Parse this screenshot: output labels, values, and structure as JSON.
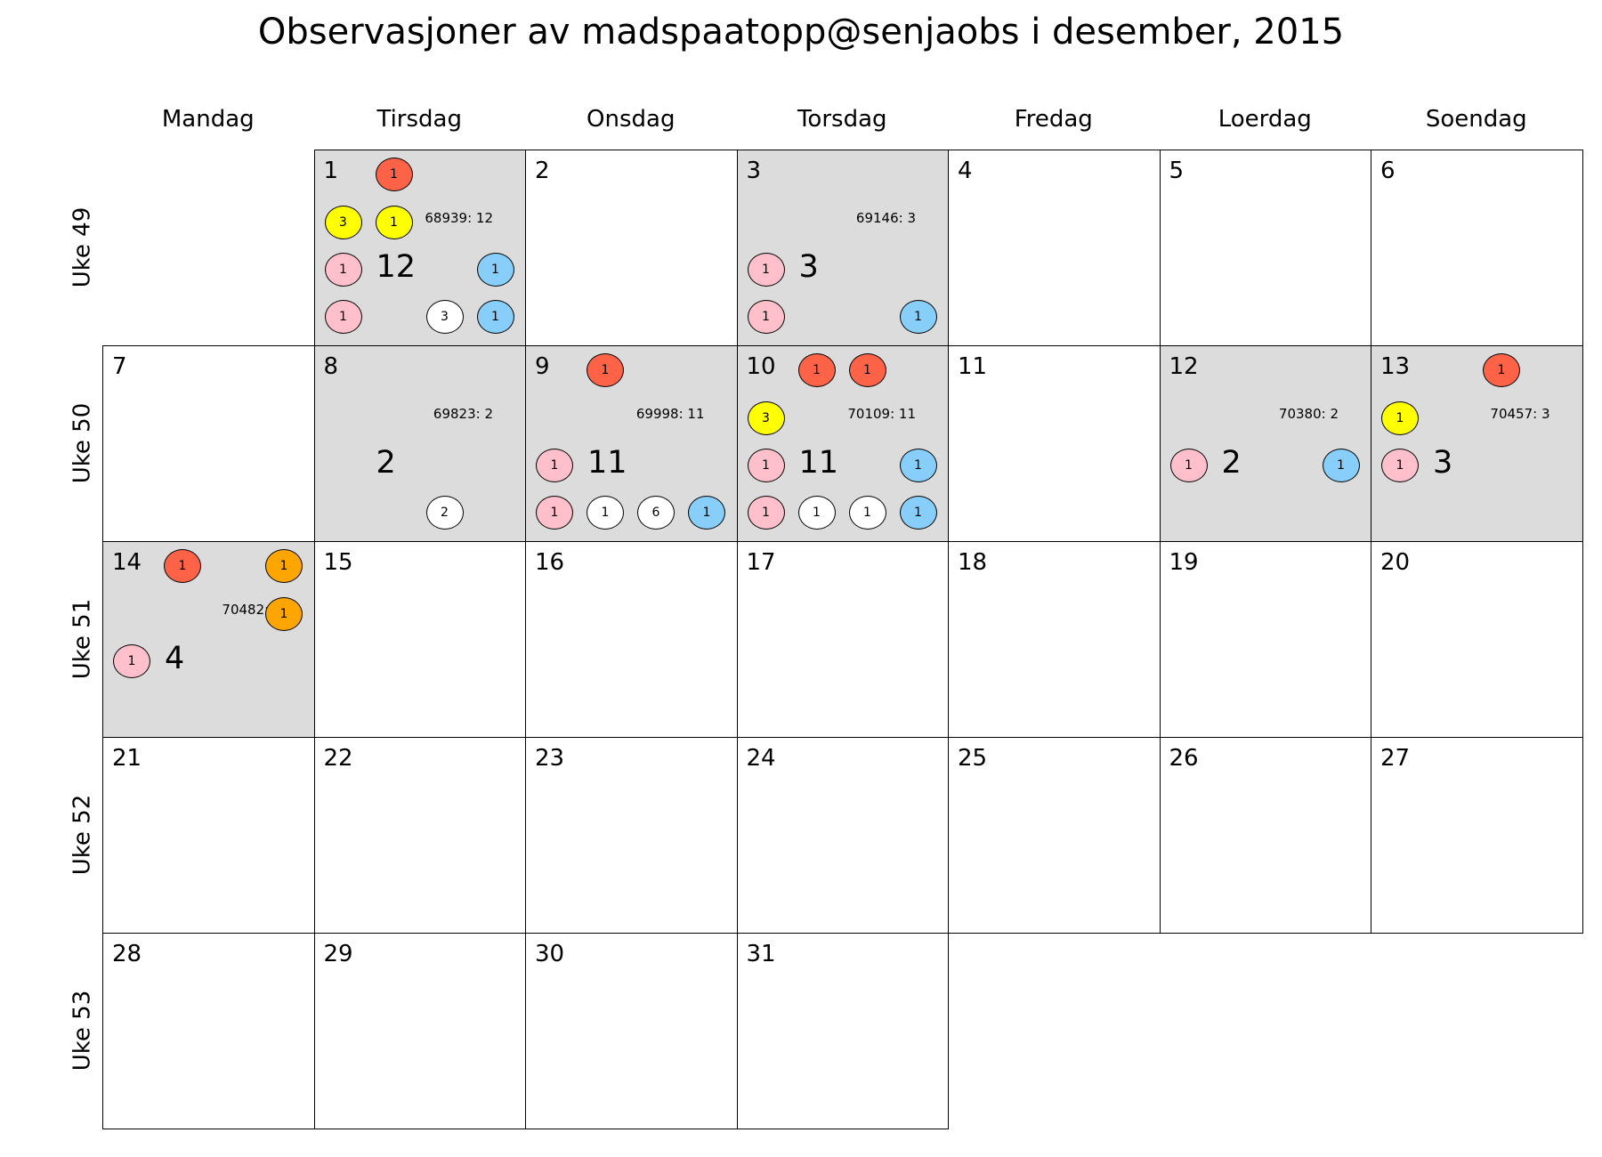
{
  "title": "Observasjoner av madspaatopp@senjaobs i desember, 2015",
  "colors": {
    "red": "#ff6347",
    "yellow": "#ffff00",
    "pink": "#ffc0cb",
    "blue": "#87cefa",
    "white": "#ffffff",
    "orange": "#ffa500",
    "shaded_bg": "#dcdcdc"
  },
  "day_names": [
    "Mandag",
    "Tirsdag",
    "Onsdag",
    "Torsdag",
    "Fredag",
    "Loerdag",
    "Soendag"
  ],
  "week_labels": [
    "Uke 49",
    "Uke 50",
    "Uke 51",
    "Uke 52",
    "Uke 53"
  ],
  "cells": [
    {
      "day": "1",
      "shaded": true,
      "total": "12",
      "obs_id": "68939: 12",
      "badges": [
        {
          "color": "red",
          "count": "1",
          "pos": "r1b"
        },
        {
          "color": "yellow",
          "count": "3",
          "pos": "r2a"
        },
        {
          "color": "yellow",
          "count": "1",
          "pos": "r2b"
        },
        {
          "color": "pink",
          "count": "1",
          "pos": "r3a"
        },
        {
          "color": "blue",
          "count": "1",
          "pos": "r3d"
        },
        {
          "color": "pink",
          "count": "1",
          "pos": "r4a"
        },
        {
          "color": "white",
          "count": "3",
          "pos": "r4c"
        },
        {
          "color": "blue",
          "count": "1",
          "pos": "r4d"
        }
      ]
    },
    {
      "day": "2",
      "shaded": false
    },
    {
      "day": "3",
      "shaded": true,
      "total": "3",
      "obs_id": "69146: 3",
      "badges": [
        {
          "color": "pink",
          "count": "1",
          "pos": "r3a"
        },
        {
          "color": "pink",
          "count": "1",
          "pos": "r4a"
        },
        {
          "color": "blue",
          "count": "1",
          "pos": "r4d"
        }
      ]
    },
    {
      "day": "4",
      "shaded": false
    },
    {
      "day": "5",
      "shaded": false
    },
    {
      "day": "6",
      "shaded": false
    },
    {
      "day": "7",
      "shaded": false
    },
    {
      "day": "8",
      "shaded": true,
      "total": "2",
      "obs_id": "69823: 2",
      "badges": [
        {
          "color": "white",
          "count": "2",
          "pos": "r4c"
        }
      ]
    },
    {
      "day": "9",
      "shaded": true,
      "total": "11",
      "obs_id": "69998: 11",
      "badges": [
        {
          "color": "red",
          "count": "1",
          "pos": "r1b"
        },
        {
          "color": "pink",
          "count": "1",
          "pos": "r3a"
        },
        {
          "color": "pink",
          "count": "1",
          "pos": "r4a"
        },
        {
          "color": "white",
          "count": "1",
          "pos": "r4b"
        },
        {
          "color": "white",
          "count": "6",
          "pos": "r4c"
        },
        {
          "color": "blue",
          "count": "1",
          "pos": "r4d"
        }
      ]
    },
    {
      "day": "10",
      "shaded": true,
      "total": "11",
      "obs_id": "70109: 11",
      "badges": [
        {
          "color": "red",
          "count": "1",
          "pos": "r1b"
        },
        {
          "color": "red",
          "count": "1",
          "pos": "r1c"
        },
        {
          "color": "yellow",
          "count": "3",
          "pos": "r2a"
        },
        {
          "color": "pink",
          "count": "1",
          "pos": "r3a"
        },
        {
          "color": "blue",
          "count": "1",
          "pos": "r3d"
        },
        {
          "color": "pink",
          "count": "1",
          "pos": "r4a"
        },
        {
          "color": "white",
          "count": "1",
          "pos": "r4b"
        },
        {
          "color": "white",
          "count": "1",
          "pos": "r4c"
        },
        {
          "color": "blue",
          "count": "1",
          "pos": "r4d"
        }
      ]
    },
    {
      "day": "11",
      "shaded": false
    },
    {
      "day": "12",
      "shaded": true,
      "total": "2",
      "obs_id": "70380: 2",
      "badges": [
        {
          "color": "pink",
          "count": "1",
          "pos": "r3a"
        },
        {
          "color": "blue",
          "count": "1",
          "pos": "r3d"
        }
      ]
    },
    {
      "day": "13",
      "shaded": true,
      "total": "3",
      "obs_id": "70457: 3",
      "badges": [
        {
          "color": "red",
          "count": "1",
          "pos": "r1c"
        },
        {
          "color": "yellow",
          "count": "1",
          "pos": "r2a"
        },
        {
          "color": "pink",
          "count": "1",
          "pos": "r3a"
        }
      ]
    },
    {
      "day": "14",
      "shaded": true,
      "total": "4",
      "obs_id": "70482: 4",
      "badges": [
        {
          "color": "red",
          "count": "1",
          "pos": "r1b"
        },
        {
          "color": "orange",
          "count": "1",
          "pos": "r1d"
        },
        {
          "color": "orange",
          "count": "1",
          "pos": "r2d"
        },
        {
          "color": "pink",
          "count": "1",
          "pos": "r3a"
        }
      ]
    },
    {
      "day": "15",
      "shaded": false
    },
    {
      "day": "16",
      "shaded": false
    },
    {
      "day": "17",
      "shaded": false
    },
    {
      "day": "18",
      "shaded": false
    },
    {
      "day": "19",
      "shaded": false
    },
    {
      "day": "20",
      "shaded": false
    },
    {
      "day": "21",
      "shaded": false
    },
    {
      "day": "22",
      "shaded": false
    },
    {
      "day": "23",
      "shaded": false
    },
    {
      "day": "24",
      "shaded": false
    },
    {
      "day": "25",
      "shaded": false
    },
    {
      "day": "26",
      "shaded": false
    },
    {
      "day": "27",
      "shaded": false
    },
    {
      "day": "28",
      "shaded": false
    },
    {
      "day": "29",
      "shaded": false
    },
    {
      "day": "30",
      "shaded": false
    },
    {
      "day": "31",
      "shaded": false
    }
  ]
}
